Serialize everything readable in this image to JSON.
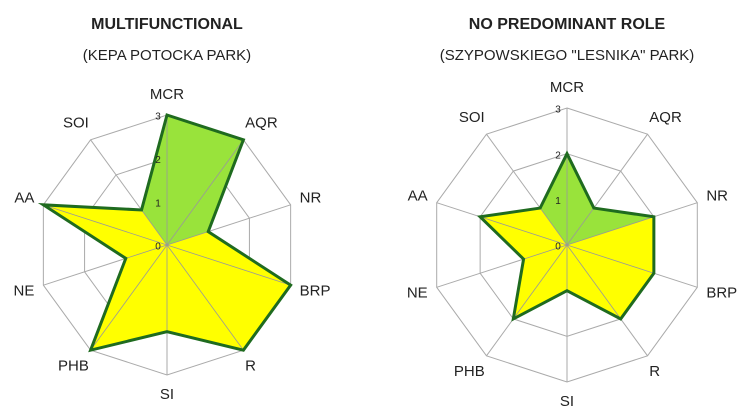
{
  "chart_data": [
    {
      "type": "radar",
      "title": "MULTIFUNCTIONAL",
      "subtitle": "(KEPA POTOCKA PARK)",
      "categories": [
        "MCR",
        "AQR",
        "NR",
        "BRP",
        "R",
        "SI",
        "PHB",
        "NE",
        "AA",
        "SOI"
      ],
      "values": [
        3,
        3,
        1,
        3,
        3,
        2,
        3,
        1,
        3,
        1
      ],
      "rlim": [
        0,
        3
      ],
      "rticks": [
        0,
        1,
        2,
        3
      ],
      "colors": [
        "#99e33b",
        "#ffff00"
      ],
      "line_color": "#1f6b1f"
    },
    {
      "type": "radar",
      "title": "NO PREDOMINANT  ROLE",
      "subtitle": "(SZYPOWSKIEGO \"LESNIKA\" PARK)",
      "categories": [
        "MCR",
        "AQR",
        "NR",
        "BRP",
        "R",
        "SI",
        "PHB",
        "NE",
        "AA",
        "SOI"
      ],
      "values": [
        2,
        1,
        2,
        2,
        2,
        1,
        2,
        1,
        2,
        1
      ],
      "rlim": [
        0,
        3
      ],
      "rticks": [
        0,
        1,
        2,
        3
      ],
      "colors": [
        "#99e33b",
        "#ffff00"
      ],
      "line_color": "#1f6b1f"
    }
  ]
}
